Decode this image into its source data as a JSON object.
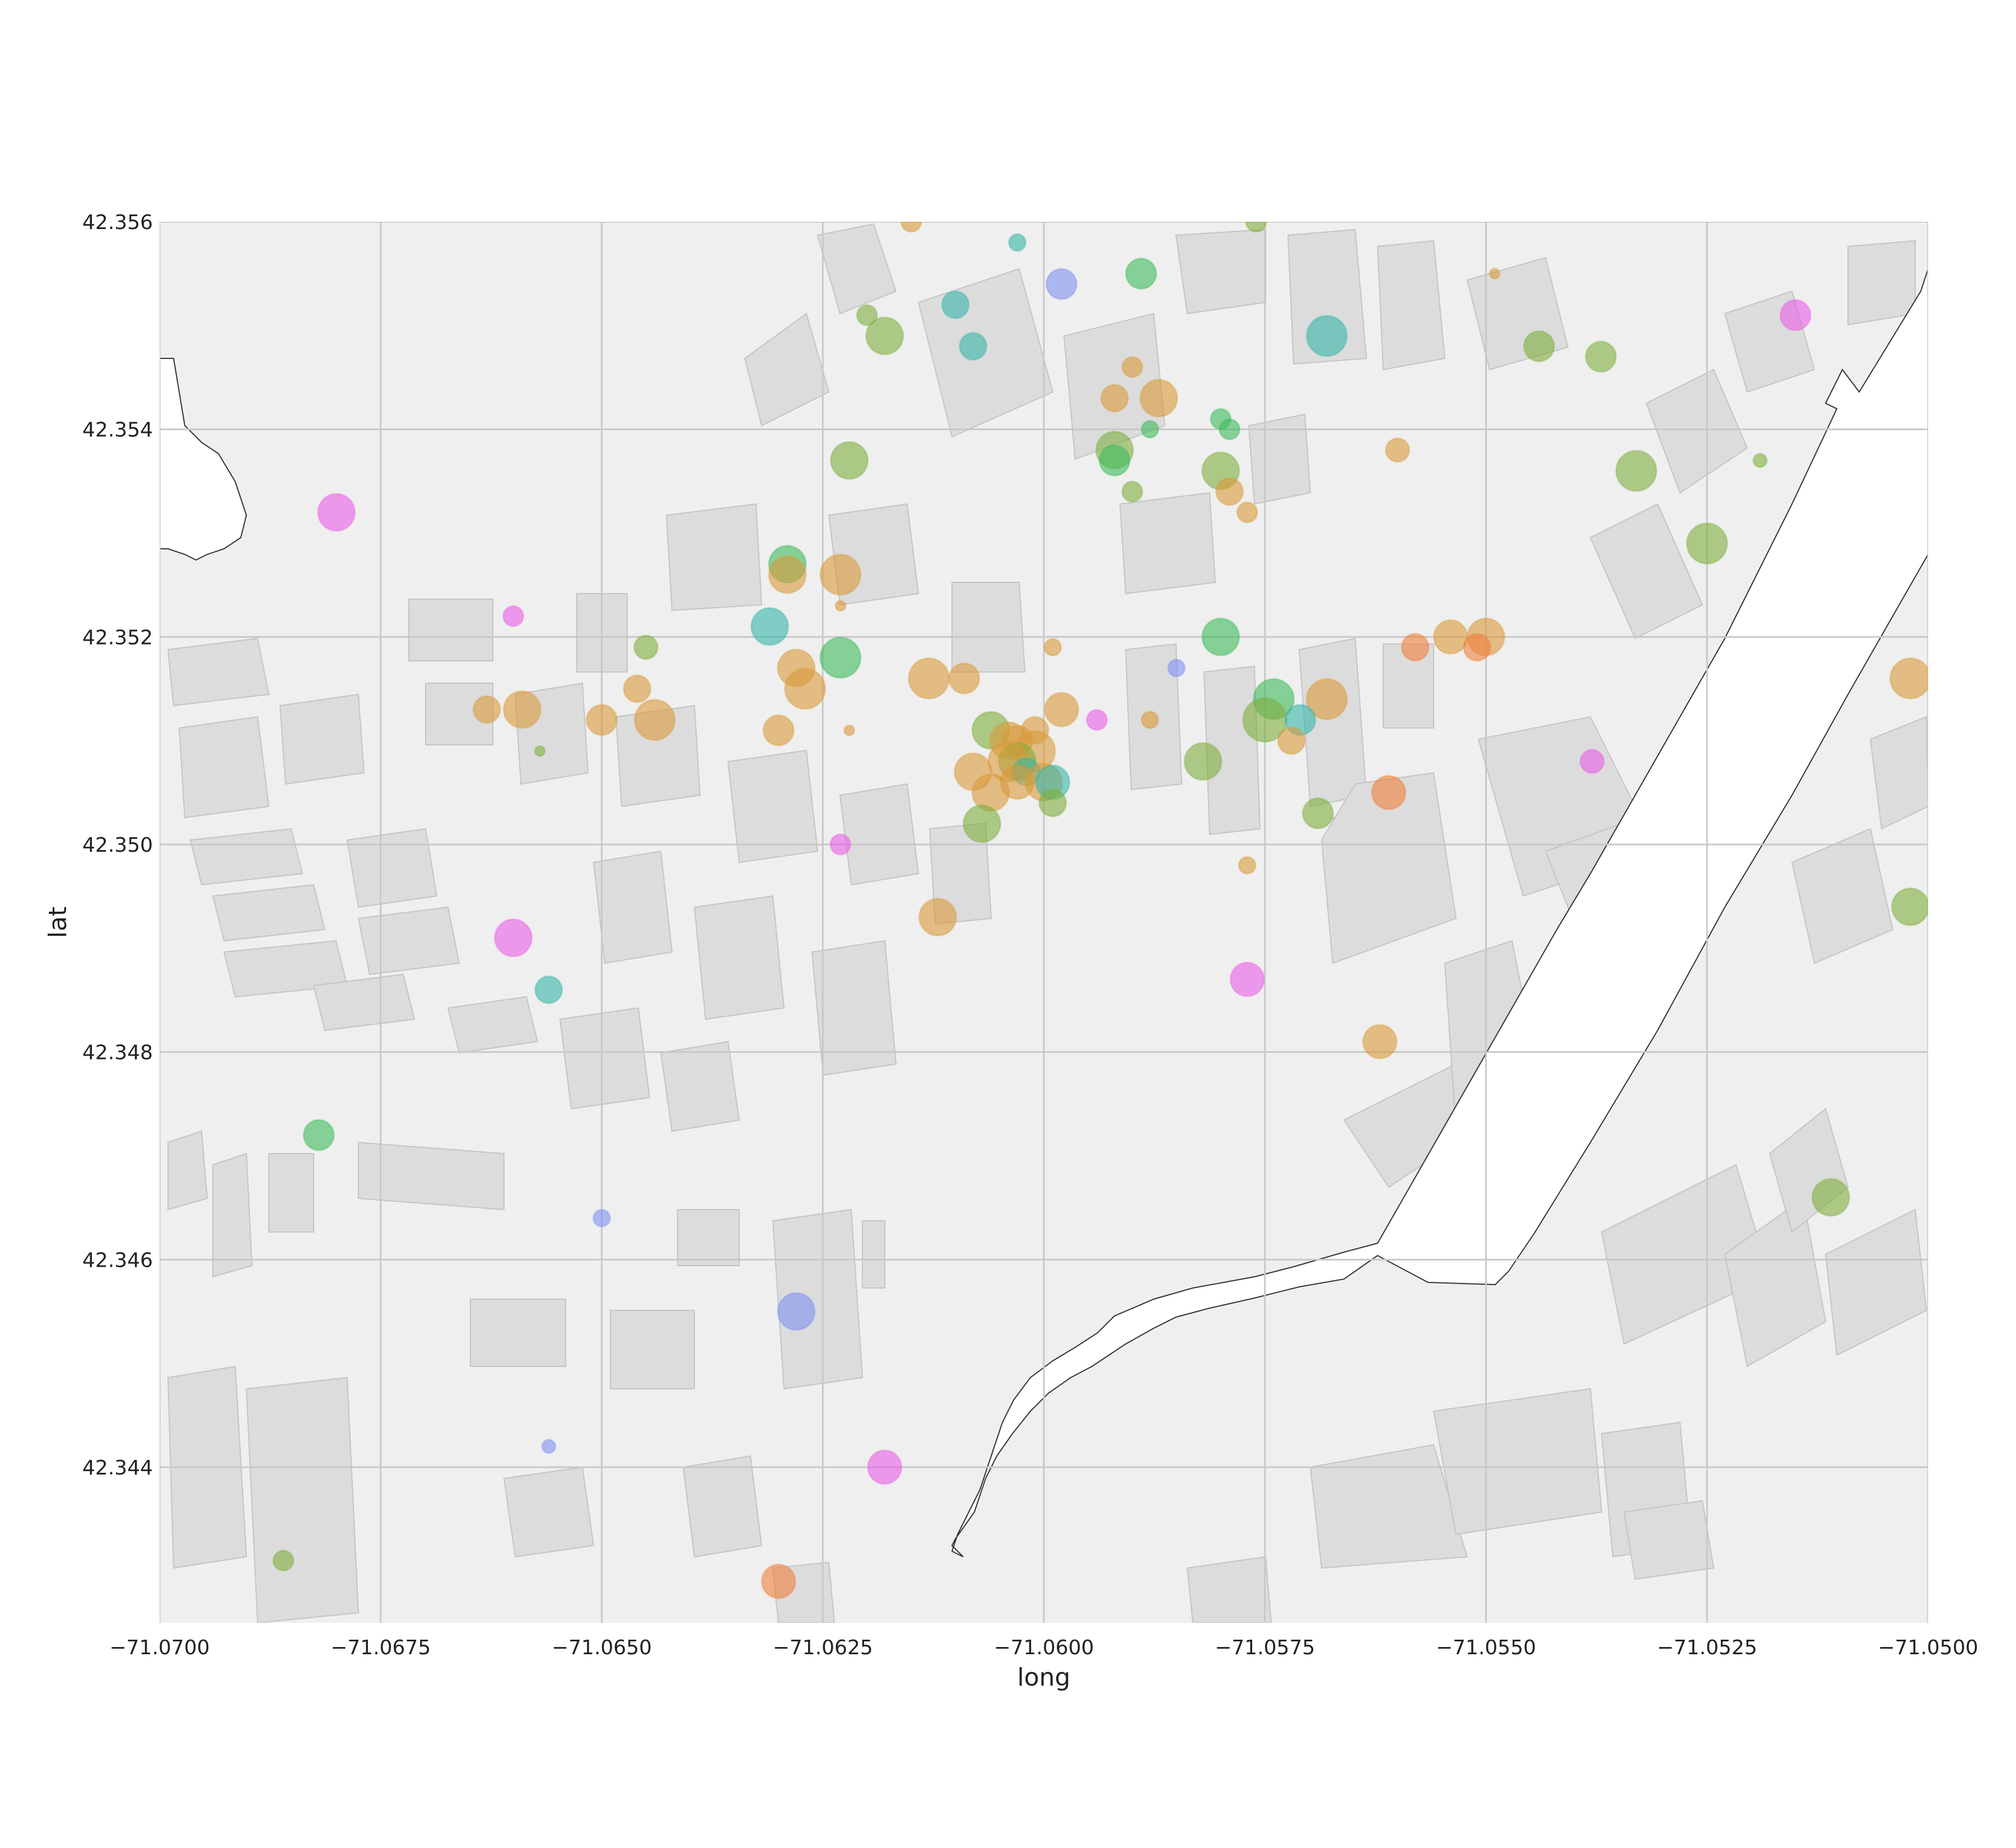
{
  "chart_data": {
    "type": "scatter",
    "title": "",
    "xlabel": "long",
    "ylabel": "lat",
    "xlim": [
      -71.07,
      -71.05
    ],
    "ylim": [
      42.3425,
      42.356
    ],
    "xticks": [
      "−71.0700",
      "−71.0675",
      "−71.0650",
      "−71.0625",
      "−71.0600",
      "−71.0575",
      "−71.0550",
      "−71.0525",
      "−71.0500"
    ],
    "xtick_values": [
      -71.07,
      -71.0675,
      -71.065,
      -71.0625,
      -71.06,
      -71.0575,
      -71.055,
      -71.0525,
      -71.05
    ],
    "yticks": [
      "42.344",
      "42.346",
      "42.348",
      "42.350",
      "42.352",
      "42.354",
      "42.356"
    ],
    "ytick_values": [
      42.344,
      42.346,
      42.348,
      42.35,
      42.352,
      42.354,
      42.356
    ],
    "grid": true,
    "background": "street-map basemap",
    "colors": {
      "orange": "#d99a3a",
      "olive": "#7fae3e",
      "green": "#3cbb5c",
      "teal": "#36b5a8",
      "blue": "#7e8ff0",
      "magenta": "#ea5ee6",
      "coral": "#f07f3a",
      "plot_bg": "#efefef",
      "grid": "#c8c8c8"
    },
    "points": [
      {
        "x": -71.0615,
        "y": 42.356,
        "color": "orange",
        "size": 6
      },
      {
        "x": -71.0603,
        "y": 42.3558,
        "color": "teal",
        "size": 5
      },
      {
        "x": -71.0598,
        "y": 42.3554,
        "color": "blue",
        "size": 9
      },
      {
        "x": -71.0589,
        "y": 42.3555,
        "color": "green",
        "size": 9
      },
      {
        "x": -71.061,
        "y": 42.3552,
        "color": "teal",
        "size": 8
      },
      {
        "x": -71.062,
        "y": 42.3551,
        "color": "olive",
        "size": 6
      },
      {
        "x": -71.0618,
        "y": 42.3549,
        "color": "olive",
        "size": 11
      },
      {
        "x": -71.0608,
        "y": 42.3548,
        "color": "teal",
        "size": 8
      },
      {
        "x": -71.0568,
        "y": 42.3549,
        "color": "teal",
        "size": 12
      },
      {
        "x": -71.0576,
        "y": 42.356,
        "color": "olive",
        "size": 6
      },
      {
        "x": -71.0549,
        "y": 42.3555,
        "color": "orange",
        "size": 3
      },
      {
        "x": -71.0515,
        "y": 42.3551,
        "color": "magenta",
        "size": 9
      },
      {
        "x": -71.0544,
        "y": 42.3548,
        "color": "olive",
        "size": 9
      },
      {
        "x": -71.0537,
        "y": 42.3547,
        "color": "olive",
        "size": 9
      },
      {
        "x": -71.059,
        "y": 42.3546,
        "color": "orange",
        "size": 6
      },
      {
        "x": -71.0587,
        "y": 42.3543,
        "color": "orange",
        "size": 11
      },
      {
        "x": -71.0592,
        "y": 42.3543,
        "color": "orange",
        "size": 8
      },
      {
        "x": -71.058,
        "y": 42.3541,
        "color": "green",
        "size": 6
      },
      {
        "x": -71.0588,
        "y": 42.354,
        "color": "green",
        "size": 5
      },
      {
        "x": -71.0579,
        "y": 42.354,
        "color": "green",
        "size": 6
      },
      {
        "x": -71.0592,
        "y": 42.3538,
        "color": "olive",
        "size": 11
      },
      {
        "x": -71.0592,
        "y": 42.3537,
        "color": "green",
        "size": 9
      },
      {
        "x": -71.056,
        "y": 42.3538,
        "color": "orange",
        "size": 7
      },
      {
        "x": -71.0622,
        "y": 42.3537,
        "color": "olive",
        "size": 11
      },
      {
        "x": -71.0533,
        "y": 42.3536,
        "color": "olive",
        "size": 12
      },
      {
        "x": -71.0519,
        "y": 42.3537,
        "color": "olive",
        "size": 4
      },
      {
        "x": -71.058,
        "y": 42.3536,
        "color": "olive",
        "size": 11
      },
      {
        "x": -71.0579,
        "y": 42.3534,
        "color": "orange",
        "size": 8
      },
      {
        "x": -71.059,
        "y": 42.3534,
        "color": "olive",
        "size": 6
      },
      {
        "x": -71.0577,
        "y": 42.3532,
        "color": "orange",
        "size": 6
      },
      {
        "x": -71.068,
        "y": 42.3532,
        "color": "magenta",
        "size": 11
      },
      {
        "x": -71.0525,
        "y": 42.3529,
        "color": "olive",
        "size": 12
      },
      {
        "x": -71.0629,
        "y": 42.3527,
        "color": "green",
        "size": 11
      },
      {
        "x": -71.0629,
        "y": 42.3526,
        "color": "orange",
        "size": 11
      },
      {
        "x": -71.0623,
        "y": 42.3526,
        "color": "orange",
        "size": 12
      },
      {
        "x": -71.0623,
        "y": 42.3523,
        "color": "orange",
        "size": 3
      },
      {
        "x": -71.066,
        "y": 42.3522,
        "color": "magenta",
        "size": 6
      },
      {
        "x": -71.0631,
        "y": 42.3521,
        "color": "teal",
        "size": 11
      },
      {
        "x": -71.058,
        "y": 42.352,
        "color": "green",
        "size": 11
      },
      {
        "x": -71.0554,
        "y": 42.352,
        "color": "orange",
        "size": 10
      },
      {
        "x": -71.055,
        "y": 42.352,
        "color": "orange",
        "size": 11
      },
      {
        "x": -71.0551,
        "y": 42.3519,
        "color": "coral",
        "size": 8
      },
      {
        "x": -71.0558,
        "y": 42.3519,
        "color": "coral",
        "size": 8
      },
      {
        "x": -71.0645,
        "y": 42.3519,
        "color": "olive",
        "size": 7
      },
      {
        "x": -71.0599,
        "y": 42.3519,
        "color": "orange",
        "size": 5
      },
      {
        "x": -71.0623,
        "y": 42.3518,
        "color": "green",
        "size": 12
      },
      {
        "x": -71.0628,
        "y": 42.3517,
        "color": "orange",
        "size": 11
      },
      {
        "x": -71.0613,
        "y": 42.3516,
        "color": "orange",
        "size": 12
      },
      {
        "x": -71.0609,
        "y": 42.3516,
        "color": "orange",
        "size": 9
      },
      {
        "x": -71.0585,
        "y": 42.3517,
        "color": "blue",
        "size": 5
      },
      {
        "x": -71.0502,
        "y": 42.3516,
        "color": "orange",
        "size": 12
      },
      {
        "x": -71.0627,
        "y": 42.3515,
        "color": "orange",
        "size": 12
      },
      {
        "x": -71.0574,
        "y": 42.3514,
        "color": "green",
        "size": 12
      },
      {
        "x": -71.0568,
        "y": 42.3514,
        "color": "orange",
        "size": 12
      },
      {
        "x": -71.0646,
        "y": 42.3515,
        "color": "orange",
        "size": 8
      },
      {
        "x": -71.0659,
        "y": 42.3513,
        "color": "orange",
        "size": 11
      },
      {
        "x": -71.0663,
        "y": 42.3513,
        "color": "orange",
        "size": 8
      },
      {
        "x": -71.065,
        "y": 42.3512,
        "color": "orange",
        "size": 9
      },
      {
        "x": -71.0644,
        "y": 42.3512,
        "color": "orange",
        "size": 12
      },
      {
        "x": -71.0598,
        "y": 42.3513,
        "color": "orange",
        "size": 10
      },
      {
        "x": -71.0594,
        "y": 42.3512,
        "color": "magenta",
        "size": 6
      },
      {
        "x": -71.0588,
        "y": 42.3512,
        "color": "orange",
        "size": 5
      },
      {
        "x": -71.0575,
        "y": 42.3512,
        "color": "olive",
        "size": 13
      },
      {
        "x": -71.0571,
        "y": 42.3512,
        "color": "teal",
        "size": 9
      },
      {
        "x": -71.0601,
        "y": 42.3511,
        "color": "orange",
        "size": 8
      },
      {
        "x": -71.0606,
        "y": 42.3511,
        "color": "olive",
        "size": 11
      },
      {
        "x": -71.0604,
        "y": 42.351,
        "color": "orange",
        "size": 11
      },
      {
        "x": -71.0603,
        "y": 42.351,
        "color": "orange",
        "size": 9
      },
      {
        "x": -71.0601,
        "y": 42.3509,
        "color": "orange",
        "size": 12
      },
      {
        "x": -71.0603,
        "y": 42.3508,
        "color": "olive",
        "size": 11
      },
      {
        "x": -71.0604,
        "y": 42.3508,
        "color": "orange",
        "size": 12
      },
      {
        "x": -71.0608,
        "y": 42.3507,
        "color": "orange",
        "size": 11
      },
      {
        "x": -71.0602,
        "y": 42.3507,
        "color": "teal",
        "size": 8
      },
      {
        "x": -71.06,
        "y": 42.3506,
        "color": "orange",
        "size": 11
      },
      {
        "x": -71.0603,
        "y": 42.3506,
        "color": "orange",
        "size": 10
      },
      {
        "x": -71.0606,
        "y": 42.3505,
        "color": "orange",
        "size": 11
      },
      {
        "x": -71.0599,
        "y": 42.3506,
        "color": "teal",
        "size": 10
      },
      {
        "x": -71.0572,
        "y": 42.351,
        "color": "orange",
        "size": 8
      },
      {
        "x": -71.0582,
        "y": 42.3508,
        "color": "olive",
        "size": 11
      },
      {
        "x": -71.063,
        "y": 42.3511,
        "color": "orange",
        "size": 9
      },
      {
        "x": -71.0622,
        "y": 42.3511,
        "color": "orange",
        "size": 3
      },
      {
        "x": -71.0538,
        "y": 42.3508,
        "color": "magenta",
        "size": 7
      },
      {
        "x": -71.0657,
        "y": 42.3509,
        "color": "olive",
        "size": 3
      },
      {
        "x": -71.0599,
        "y": 42.3504,
        "color": "olive",
        "size": 8
      },
      {
        "x": -71.0561,
        "y": 42.3505,
        "color": "coral",
        "size": 10
      },
      {
        "x": -71.0569,
        "y": 42.3503,
        "color": "olive",
        "size": 9
      },
      {
        "x": -71.0607,
        "y": 42.3502,
        "color": "olive",
        "size": 11
      },
      {
        "x": -71.0623,
        "y": 42.35,
        "color": "magenta",
        "size": 6
      },
      {
        "x": -71.0577,
        "y": 42.3498,
        "color": "orange",
        "size": 5
      },
      {
        "x": -71.0502,
        "y": 42.3494,
        "color": "olive",
        "size": 11
      },
      {
        "x": -71.0612,
        "y": 42.3493,
        "color": "orange",
        "size": 11
      },
      {
        "x": -71.066,
        "y": 42.3491,
        "color": "magenta",
        "size": 11
      },
      {
        "x": -71.0577,
        "y": 42.3487,
        "color": "magenta",
        "size": 10
      },
      {
        "x": -71.0656,
        "y": 42.3486,
        "color": "teal",
        "size": 8
      },
      {
        "x": -71.0562,
        "y": 42.3481,
        "color": "orange",
        "size": 10
      },
      {
        "x": -71.0682,
        "y": 42.3472,
        "color": "green",
        "size": 9
      },
      {
        "x": -71.0511,
        "y": 42.3466,
        "color": "olive",
        "size": 11
      },
      {
        "x": -71.065,
        "y": 42.3464,
        "color": "blue",
        "size": 5
      },
      {
        "x": -71.0628,
        "y": 42.3455,
        "color": "blue",
        "size": 11
      },
      {
        "x": -71.0656,
        "y": 42.3442,
        "color": "blue",
        "size": 4
      },
      {
        "x": -71.0618,
        "y": 42.344,
        "color": "magenta",
        "size": 10
      },
      {
        "x": -71.0686,
        "y": 42.3431,
        "color": "olive",
        "size": 6
      },
      {
        "x": -71.063,
        "y": 42.3429,
        "color": "coral",
        "size": 10
      }
    ]
  }
}
